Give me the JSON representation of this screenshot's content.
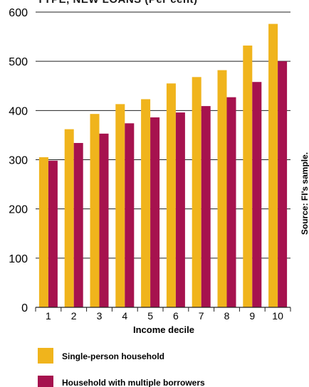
{
  "chart_data": {
    "type": "bar",
    "title": "TYPE, NEW LOANS (Per cent)",
    "xlabel": "Income decile",
    "ylabel": "",
    "ylim": [
      0,
      600
    ],
    "yticks": [
      0,
      100,
      200,
      300,
      400,
      500,
      600
    ],
    "categories": [
      "1",
      "2",
      "3",
      "4",
      "5",
      "6",
      "7",
      "8",
      "9",
      "10"
    ],
    "series": [
      {
        "name": "Single-person household",
        "color": "#f0b41c",
        "values": [
          305,
          362,
          393,
          413,
          423,
          455,
          468,
          482,
          532,
          576
        ]
      },
      {
        "name": "Household with multiple borrowers",
        "color": "#a6124e",
        "values": [
          298,
          334,
          353,
          374,
          386,
          396,
          409,
          427,
          458,
          500
        ]
      }
    ],
    "grid": true,
    "legend": "bottom",
    "source": "Source: FI's sample."
  }
}
